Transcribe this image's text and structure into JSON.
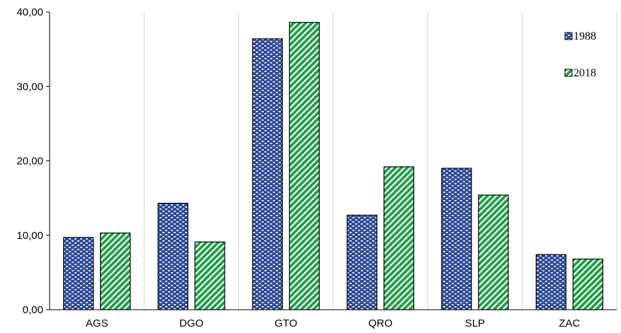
{
  "chart_data": {
    "type": "bar",
    "categories": [
      "AGS",
      "DGO",
      "GTO",
      "QRO",
      "SLP",
      "ZAC"
    ],
    "series": [
      {
        "name": "1988",
        "values": [
          9.7,
          14.3,
          36.4,
          12.7,
          19.0,
          7.4
        ],
        "color": "#2e4a9a"
      },
      {
        "name": "2018",
        "values": [
          10.3,
          9.1,
          38.6,
          19.2,
          15.4,
          6.8
        ],
        "color": "#1e9e46"
      }
    ],
    "ylim": [
      0,
      40
    ],
    "yticks": [
      "0,00",
      "10,00",
      "20,00",
      "30,00",
      "40,00"
    ],
    "grid": "vertical",
    "legend_position": "top-right"
  }
}
